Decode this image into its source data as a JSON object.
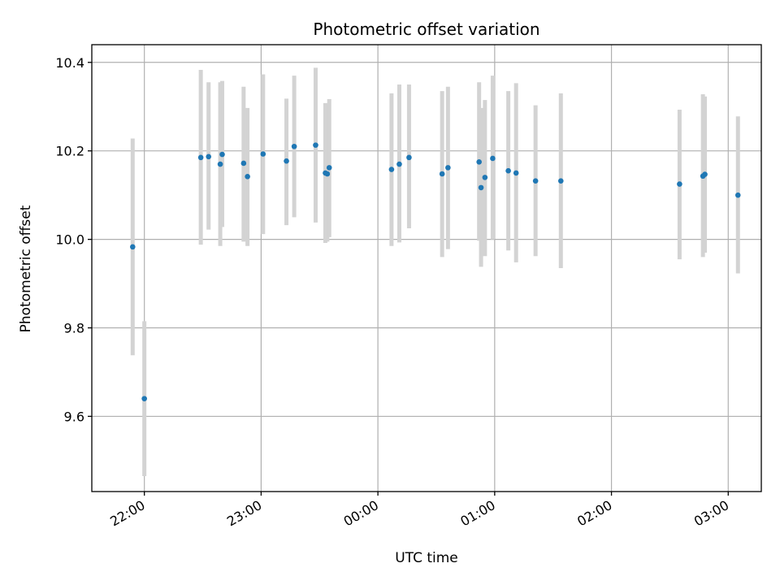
{
  "chart_data": {
    "type": "scatter",
    "title": "Photometric offset variation",
    "xlabel": "UTC time",
    "ylabel": "Photometric offset",
    "x_axis": {
      "kind": "time",
      "range": [
        "21:33",
        "03:17"
      ],
      "ticks": [
        "22:00",
        "23:00",
        "00:00",
        "01:00",
        "02:00",
        "03:00"
      ],
      "tick_label_rotation": 30
    },
    "y_axis": {
      "range": [
        9.43,
        10.44
      ],
      "ticks": [
        "9.6",
        "9.8",
        "10.0",
        "10.2",
        "10.4"
      ],
      "tick_values": [
        9.6,
        9.8,
        10.0,
        10.2,
        10.4
      ]
    },
    "grid": true,
    "marker_color": "#1f77b4",
    "errorbar_color": "#d3d3d3",
    "points": [
      {
        "t": "21:54",
        "y": 9.983,
        "lo": 9.738,
        "hi": 10.228
      },
      {
        "t": "22:00",
        "y": 9.64,
        "lo": 9.465,
        "hi": 9.815
      },
      {
        "t": "22:29",
        "y": 10.185,
        "lo": 9.988,
        "hi": 10.383
      },
      {
        "t": "22:33",
        "y": 10.187,
        "lo": 10.022,
        "hi": 10.355
      },
      {
        "t": "22:39",
        "y": 10.17,
        "lo": 9.985,
        "hi": 10.355
      },
      {
        "t": "22:40",
        "y": 10.192,
        "lo": 10.028,
        "hi": 10.358
      },
      {
        "t": "22:51",
        "y": 10.172,
        "lo": 9.995,
        "hi": 10.345
      },
      {
        "t": "22:53",
        "y": 10.142,
        "lo": 9.985,
        "hi": 10.297
      },
      {
        "t": "23:01",
        "y": 10.193,
        "lo": 10.012,
        "hi": 10.373
      },
      {
        "t": "23:13",
        "y": 10.177,
        "lo": 10.032,
        "hi": 10.318
      },
      {
        "t": "23:17",
        "y": 10.21,
        "lo": 10.05,
        "hi": 10.37
      },
      {
        "t": "23:28",
        "y": 10.213,
        "lo": 10.038,
        "hi": 10.388
      },
      {
        "t": "23:33",
        "y": 10.15,
        "lo": 9.992,
        "hi": 10.308
      },
      {
        "t": "23:34",
        "y": 10.148,
        "lo": 9.995,
        "hi": 10.305
      },
      {
        "t": "23:35",
        "y": 10.162,
        "lo": 10.005,
        "hi": 10.317
      },
      {
        "t": "00:07",
        "y": 10.158,
        "lo": 9.985,
        "hi": 10.33
      },
      {
        "t": "00:11",
        "y": 10.17,
        "lo": 9.993,
        "hi": 10.35
      },
      {
        "t": "00:16",
        "y": 10.185,
        "lo": 10.025,
        "hi": 10.35
      },
      {
        "t": "00:33",
        "y": 10.148,
        "lo": 9.96,
        "hi": 10.335
      },
      {
        "t": "00:36",
        "y": 10.162,
        "lo": 9.978,
        "hi": 10.345
      },
      {
        "t": "00:52",
        "y": 10.175,
        "lo": 9.997,
        "hi": 10.355
      },
      {
        "t": "00:53",
        "y": 10.117,
        "lo": 9.938,
        "hi": 10.297
      },
      {
        "t": "00:55",
        "y": 10.14,
        "lo": 9.962,
        "hi": 10.315
      },
      {
        "t": "00:59",
        "y": 10.183,
        "lo": 10.0,
        "hi": 10.37
      },
      {
        "t": "01:07",
        "y": 10.155,
        "lo": 9.975,
        "hi": 10.335
      },
      {
        "t": "01:11",
        "y": 10.15,
        "lo": 9.948,
        "hi": 10.353
      },
      {
        "t": "01:21",
        "y": 10.132,
        "lo": 9.962,
        "hi": 10.303
      },
      {
        "t": "01:34",
        "y": 10.132,
        "lo": 9.935,
        "hi": 10.33
      },
      {
        "t": "02:35",
        "y": 10.125,
        "lo": 9.955,
        "hi": 10.293
      },
      {
        "t": "02:47",
        "y": 10.143,
        "lo": 9.96,
        "hi": 10.328
      },
      {
        "t": "02:48",
        "y": 10.147,
        "lo": 9.97,
        "hi": 10.323
      },
      {
        "t": "03:05",
        "y": 10.1,
        "lo": 9.923,
        "hi": 10.278
      }
    ]
  }
}
